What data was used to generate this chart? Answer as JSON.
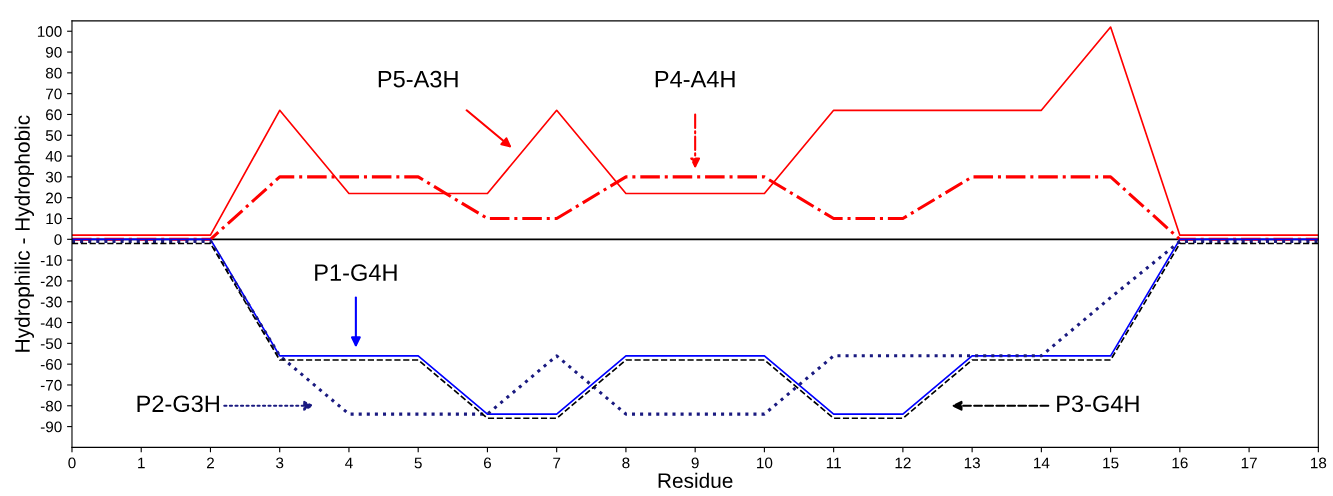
{
  "chart_data": {
    "type": "line",
    "xlabel": "Residue",
    "ylabel": "Hydrophilic - Hydrophobic",
    "x": [
      0,
      1,
      2,
      3,
      4,
      5,
      6,
      7,
      8,
      9,
      10,
      11,
      12,
      13,
      14,
      15,
      16,
      17,
      18
    ],
    "series": [
      {
        "color": "#ff0000",
        "line_style": "solid",
        "values": [
          2,
          2,
          2,
          62,
          22,
          22,
          22,
          62,
          22,
          22,
          22,
          62,
          62,
          62,
          62,
          102,
          2,
          2,
          2
        ]
      },
      {
        "color": "#ff0000",
        "line_style": "dashdot",
        "values": [
          0,
          0,
          0,
          30,
          30,
          30,
          10,
          10,
          30,
          30,
          30,
          10,
          10,
          30,
          30,
          30,
          0,
          0,
          0
        ]
      },
      {
        "color": "#0000ff",
        "line_style": "solid",
        "values": [
          0,
          0,
          0,
          -56,
          -56,
          -56,
          -84,
          -84,
          -56,
          -56,
          -56,
          -84,
          -84,
          -56,
          -56,
          -56,
          0,
          0,
          0
        ]
      },
      {
        "color": "#1a1a80",
        "line_style": "dotted",
        "values": [
          -1,
          -1,
          -1,
          -56,
          -84,
          -84,
          -84,
          -56,
          -84,
          -84,
          -84,
          -56,
          -56,
          -56,
          -56,
          -28,
          -1,
          -1,
          -1
        ]
      },
      {
        "color": "#000000",
        "line_style": "dashed",
        "values": [
          -2,
          -2,
          -2,
          -58,
          -58,
          -58,
          -86,
          -86,
          -58,
          -58,
          -58,
          -86,
          -86,
          -58,
          -58,
          -58,
          -2,
          -2,
          -2
        ]
      }
    ],
    "annotations": [
      "P5-A3H",
      "P4-A4H",
      "P1-G4H",
      "P2-G3H",
      "P3-G4H"
    ],
    "ref_lines": [
      {
        "axis": "y",
        "value": 0,
        "color": "#000000"
      }
    ],
    "xlim": [
      0,
      18
    ],
    "xticks": [
      0,
      1,
      2,
      3,
      4,
      5,
      6,
      7,
      8,
      9,
      10,
      11,
      12,
      13,
      14,
      15,
      16,
      17,
      18
    ],
    "ylim": [
      -100,
      105
    ],
    "yticks": [
      -90,
      -80,
      -70,
      -60,
      -50,
      -40,
      -30,
      -20,
      -10,
      0,
      10,
      20,
      30,
      40,
      50,
      60,
      70,
      80,
      90,
      100
    ],
    "grid": false,
    "legend": false
  }
}
